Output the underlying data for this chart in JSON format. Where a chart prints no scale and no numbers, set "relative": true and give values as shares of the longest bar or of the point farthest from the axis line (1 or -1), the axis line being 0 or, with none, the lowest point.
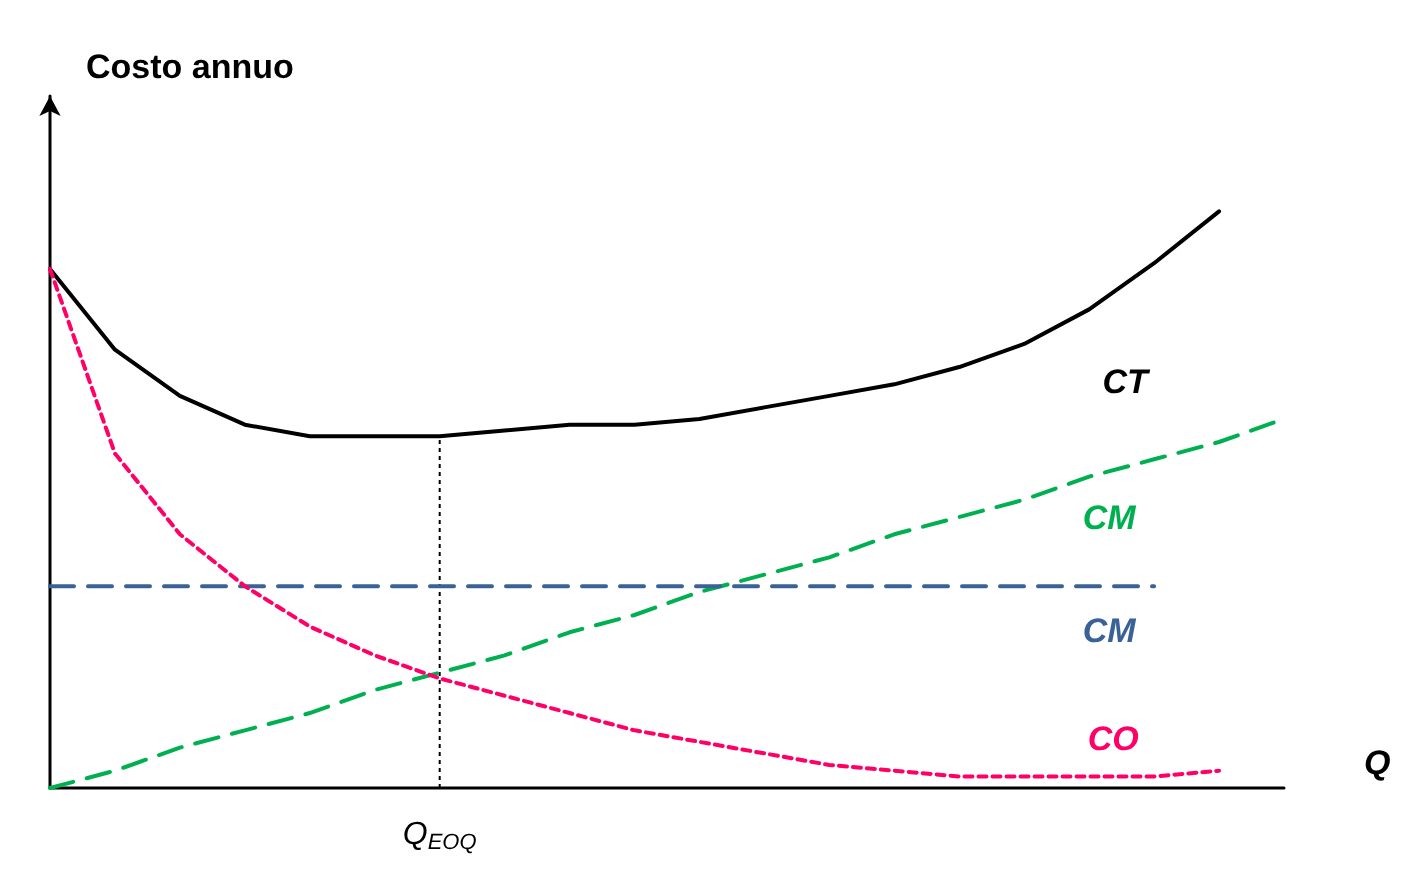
{
  "chart_data": {
    "type": "line",
    "relative": true,
    "xlabel": "Q",
    "ylabel": "Costo annuo",
    "categories": [
      null,
      null,
      null,
      null,
      null,
      null,
      null,
      null,
      null,
      null,
      null,
      null,
      null,
      null,
      null,
      null,
      null,
      null,
      null,
      null
    ],
    "series": [
      {
        "name": "CT",
        "color": "#000000",
        "line_style": "solid",
        "values": [
          0.9,
          0.76,
          0.68,
          0.63,
          0.61,
          0.61,
          0.61,
          0.62,
          0.63,
          0.63,
          0.64,
          0.66,
          0.68,
          0.7,
          0.73,
          0.77,
          0.83,
          0.91,
          1.0,
          null
        ]
      },
      {
        "name": "CM",
        "color": "#00b050",
        "line_style": "dashed",
        "values": [
          0,
          0.03,
          0.07,
          0.1,
          0.13,
          0.17,
          0.2,
          0.23,
          0.27,
          0.3,
          0.34,
          0.37,
          0.4,
          0.44,
          0.47,
          0.5,
          0.54,
          0.57,
          0.6,
          0.64
        ]
      },
      {
        "name": "CM",
        "color": "#3a6296",
        "line_style": "dashed",
        "values": [
          0.35,
          0.35,
          0.35,
          0.35,
          0.35,
          0.35,
          0.35,
          0.35,
          0.35,
          0.35,
          0.35,
          0.35,
          0.35,
          0.35,
          0.35,
          0.35,
          0.35,
          0.35,
          null,
          null
        ]
      },
      {
        "name": "CO",
        "color": "#ff0066",
        "line_style": "dotted",
        "values": [
          0.9,
          0.58,
          0.44,
          0.35,
          0.28,
          0.23,
          0.19,
          0.16,
          0.13,
          0.1,
          0.08,
          0.06,
          0.04,
          0.03,
          0.02,
          0.02,
          0.02,
          0.02,
          0.03,
          null
        ]
      }
    ],
    "annotations": [
      "Q$_{EOQ}$"
    ],
    "marker": "none",
    "grid": false,
    "legend": false
  }
}
